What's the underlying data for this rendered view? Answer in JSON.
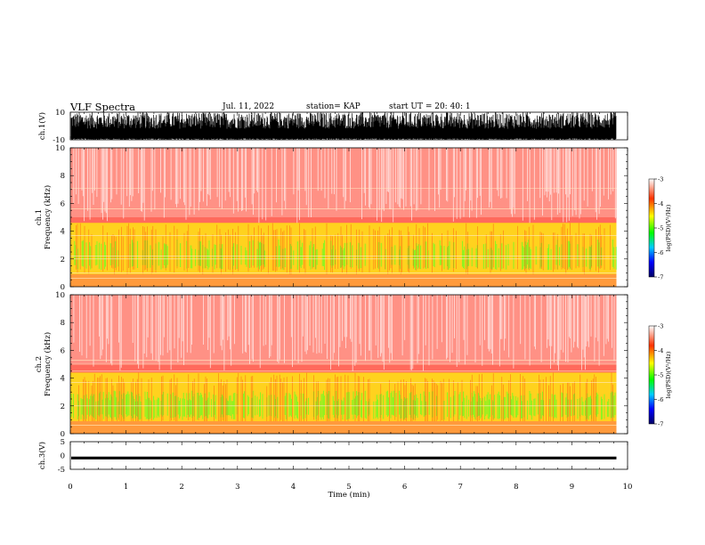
{
  "header": {
    "title": "VLF Spectra",
    "date": "Jul. 11, 2022",
    "station": "station= KAP",
    "start": "start UT = 20: 40: 1"
  },
  "chart_data": [
    {
      "type": "line",
      "ylabel": "ch.1(V)",
      "ylim": [
        -10,
        10
      ],
      "yticks": [
        "10",
        "-10"
      ],
      "description_values": "noisy waveform spanning full range"
    },
    {
      "type": "heatmap",
      "ylabel_line1": "ch.1",
      "ylabel_line2": "Frequency (kHz)",
      "ylim": [
        0,
        10
      ],
      "yticks": [
        "0",
        "2",
        "4",
        "6",
        "8",
        "10"
      ],
      "colorbar": {
        "label": "log(PSD)(V²/Hz)",
        "ticks": [
          "-3",
          "-4",
          "-5",
          "-6",
          "-7"
        ],
        "range": [
          -7,
          -3
        ]
      }
    },
    {
      "type": "heatmap",
      "ylabel_line1": "ch.2",
      "ylabel_line2": "Frequency (kHz)",
      "ylim": [
        0,
        10
      ],
      "yticks": [
        "0",
        "2",
        "4",
        "6",
        "8",
        "10"
      ],
      "colorbar": {
        "label": "log(PSD)(V²/Hz)",
        "ticks": [
          "-3",
          "-4",
          "-5",
          "-6",
          "-7"
        ],
        "range": [
          -7,
          -3
        ]
      }
    },
    {
      "type": "line",
      "ylabel": "ch.3(V)",
      "ylim": [
        -5,
        5
      ],
      "yticks": [
        "5",
        "0",
        "-5"
      ],
      "description_values": "near-constant band around -1 V"
    }
  ],
  "xaxis": {
    "label": "Time (min)",
    "range": [
      0,
      10
    ],
    "ticks": [
      "0",
      "1",
      "2",
      "3",
      "4",
      "5",
      "6",
      "7",
      "8",
      "9",
      "10"
    ],
    "data_end": 9.8
  }
}
